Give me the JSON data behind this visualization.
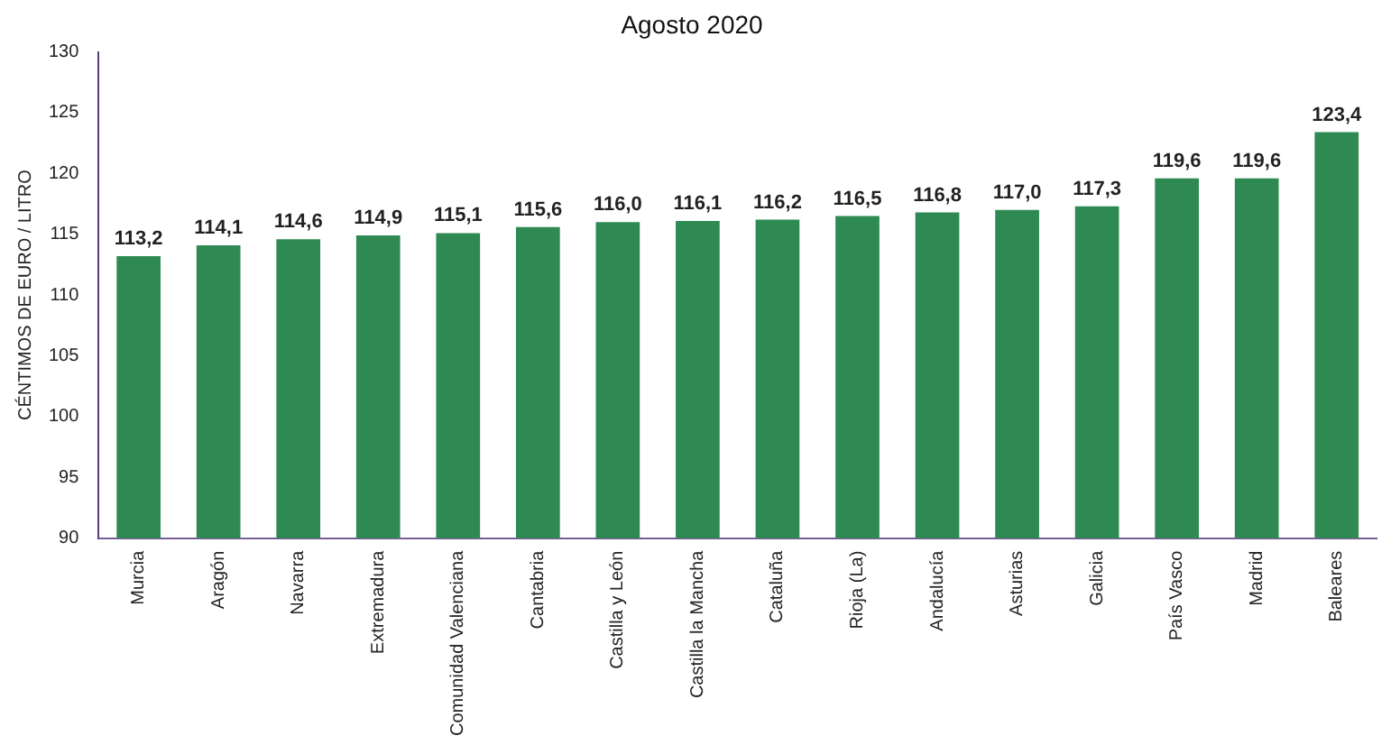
{
  "chart_data": {
    "type": "bar",
    "title": "Agosto 2020",
    "ylabel": "CÉNTIMOS DE EURO / LITRO",
    "categories": [
      "Murcia",
      "Aragón",
      "Navarra",
      "Extremadura",
      "Comunidad Valenciana",
      "Cantabria",
      "Castilla y León",
      "Castilla la Mancha",
      "Cataluña",
      "Rioja (La)",
      "Andalucía",
      "Asturias",
      "Galicia",
      "País Vasco",
      "Madrid",
      "Baleares"
    ],
    "values": [
      113.2,
      114.1,
      114.6,
      114.9,
      115.1,
      115.6,
      116.0,
      116.1,
      116.2,
      116.5,
      116.8,
      117.0,
      117.3,
      119.6,
      119.6,
      123.4
    ],
    "value_labels": [
      "113,2",
      "114,1",
      "114,6",
      "114,9",
      "115,1",
      "115,6",
      "116,0",
      "116,1",
      "116,2",
      "116,5",
      "116,8",
      "117,0",
      "117,3",
      "119,6",
      "119,6",
      "123,4"
    ],
    "color": "#2e8a52",
    "ylim": [
      90,
      130
    ],
    "yticks": [
      90,
      95,
      100,
      105,
      110,
      115,
      120,
      125,
      130
    ],
    "grid": false,
    "legend": false
  }
}
